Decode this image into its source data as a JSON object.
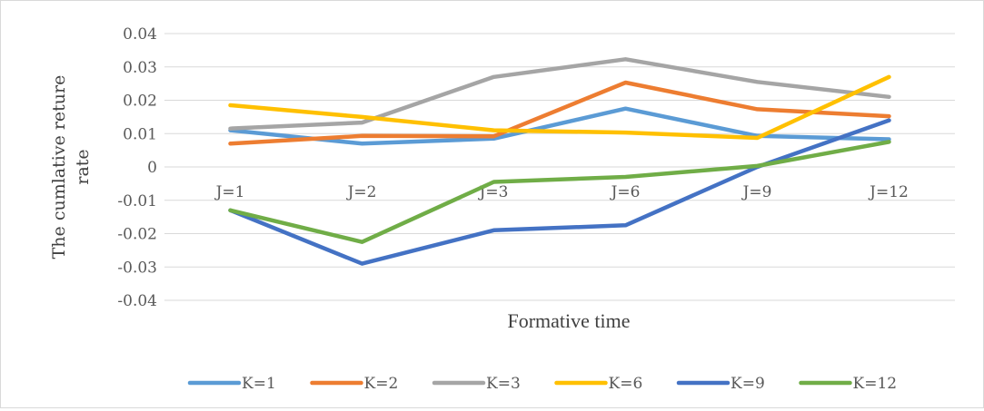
{
  "chart_data": {
    "type": "line",
    "title": "",
    "xlabel": "Formative time",
    "ylabel": "The cumulative return rate",
    "ylabel_lines": [
      "The cumlative reture",
      "rate"
    ],
    "categories": [
      "J=1",
      "J=2",
      "J=3",
      "J=6",
      "J=9",
      "J=12"
    ],
    "ylim": [
      -0.04,
      0.04
    ],
    "yticks": [
      "0.04",
      "0.03",
      "0.02",
      "0.01",
      "0",
      "-0.01",
      "-0.02",
      "-0.03",
      "-0.04"
    ],
    "ytick_values": [
      0.04,
      0.03,
      0.02,
      0.01,
      0,
      -0.01,
      -0.02,
      -0.03,
      -0.04
    ],
    "grid": true,
    "legend_position": "bottom",
    "series": [
      {
        "name": "K=1",
        "color": "#5B9BD5",
        "values": [
          0.011,
          0.007,
          0.0085,
          0.0175,
          0.0093,
          0.0083
        ]
      },
      {
        "name": "K=2",
        "color": "#ED7D31",
        "values": [
          0.007,
          0.0093,
          0.0092,
          0.0253,
          0.0173,
          0.0152
        ]
      },
      {
        "name": "K=3",
        "color": "#A5A5A5",
        "values": [
          0.0115,
          0.0133,
          0.027,
          0.0323,
          0.0255,
          0.021
        ]
      },
      {
        "name": "K=6",
        "color": "#FFC000",
        "values": [
          0.0185,
          0.015,
          0.011,
          0.0103,
          0.0087,
          0.027
        ]
      },
      {
        "name": "K=9",
        "color": "#4472C4",
        "values": [
          -0.013,
          -0.029,
          -0.019,
          -0.0175,
          0.0,
          0.014
        ]
      },
      {
        "name": "K=12",
        "color": "#70AD47",
        "values": [
          -0.013,
          -0.0225,
          -0.0045,
          -0.003,
          0.0003,
          0.0075
        ]
      }
    ]
  }
}
